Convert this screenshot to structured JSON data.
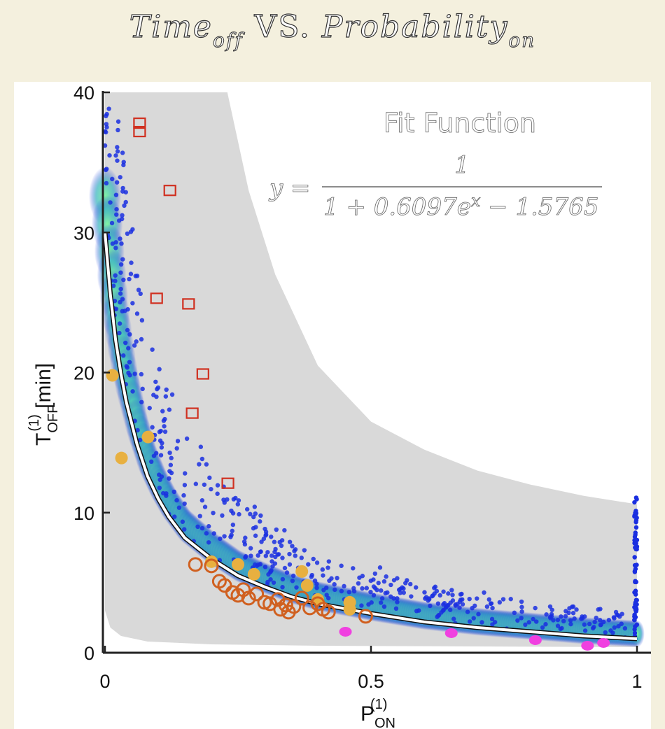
{
  "page": {
    "title_main": "Time",
    "title_main_sub": "off",
    "title_mid": " VS. ",
    "title_prob": "Probability",
    "title_prob_sub": "on"
  },
  "chart_data": {
    "type": "scatter",
    "title": "Time_off VS. Probability_on",
    "xlabel": "P_ON^(1)",
    "xlabel_main": "P",
    "xlabel_sub": "ON",
    "xlabel_sup": "(1)",
    "ylabel": "T_OFF^(1) [min]",
    "ylabel_main": "T",
    "ylabel_sub": "OFF",
    "ylabel_sup": "(1)",
    "ylabel_unit": " [min]",
    "xlim": [
      0,
      1
    ],
    "ylim": [
      0,
      40
    ],
    "xticks": [
      0,
      0.5,
      1
    ],
    "xtick_labels": [
      "0",
      "0.5",
      "1"
    ],
    "yticks": [
      0,
      10,
      20,
      30,
      40
    ],
    "ytick_labels": [
      "0",
      "10",
      "20",
      "30",
      "40"
    ],
    "grid": false,
    "annotation": {
      "heading": "Fit Function",
      "y_label": "y =",
      "numerator": "1",
      "denominator": "1 + 0.6097e",
      "exponent": "x",
      "denominator_tail": " − 1.5765"
    },
    "colors": {
      "band": "#d9d9d9",
      "density_low": "#1a2fe0",
      "density_high": "#7cf5a0",
      "fit_line": "#ffffff",
      "red_square": "#d03020",
      "orange_circle": "#d06020",
      "yellow_dot": "#e8b040",
      "magenta_dot": "#f040e0"
    },
    "series": [
      {
        "type": "band",
        "lower": [
          [
            0.0,
            3.0
          ],
          [
            0.01,
            1.8
          ],
          [
            0.03,
            1.2
          ],
          [
            0.08,
            0.8
          ],
          [
            0.2,
            0.6
          ],
          [
            0.4,
            0.5
          ],
          [
            0.7,
            0.45
          ],
          [
            1.0,
            0.4
          ]
        ],
        "upper": [
          [
            0.23,
            40.0
          ],
          [
            0.27,
            33.0
          ],
          [
            0.32,
            27.0
          ],
          [
            0.4,
            20.5
          ],
          [
            0.5,
            16.5
          ],
          [
            0.6,
            14.5
          ],
          [
            0.7,
            13.0
          ],
          [
            0.8,
            12.0
          ],
          [
            0.9,
            11.2
          ],
          [
            1.0,
            10.6
          ]
        ]
      },
      {
        "type": "line",
        "points": [
          [
            0.0,
            30.0
          ],
          [
            0.005,
            27.8
          ],
          [
            0.01,
            25.6
          ],
          [
            0.02,
            22.3
          ],
          [
            0.03,
            19.9
          ],
          [
            0.04,
            17.9
          ],
          [
            0.05,
            16.4
          ],
          [
            0.06,
            14.9
          ],
          [
            0.08,
            12.6
          ],
          [
            0.1,
            11.0
          ],
          [
            0.12,
            9.7
          ],
          [
            0.15,
            8.2
          ],
          [
            0.2,
            6.7
          ],
          [
            0.25,
            5.5
          ],
          [
            0.3,
            4.7
          ],
          [
            0.35,
            4.0
          ],
          [
            0.4,
            3.5
          ],
          [
            0.5,
            2.8
          ],
          [
            0.6,
            2.2
          ],
          [
            0.7,
            1.8
          ],
          [
            0.8,
            1.5
          ],
          [
            0.9,
            1.2
          ],
          [
            1.0,
            1.0
          ]
        ]
      },
      {
        "type": "red_squares",
        "points": [
          [
            0.065,
            37.8
          ],
          [
            0.065,
            37.2
          ],
          [
            0.122,
            33.0
          ],
          [
            0.097,
            25.3
          ],
          [
            0.157,
            24.9
          ],
          [
            0.184,
            19.9
          ],
          [
            0.164,
            17.1
          ],
          [
            0.231,
            12.1
          ]
        ]
      },
      {
        "type": "orange_circles",
        "points": [
          [
            0.17,
            6.3
          ],
          [
            0.2,
            6.2
          ],
          [
            0.215,
            5.1
          ],
          [
            0.225,
            4.8
          ],
          [
            0.24,
            4.3
          ],
          [
            0.25,
            4.1
          ],
          [
            0.27,
            3.9
          ],
          [
            0.285,
            4.2
          ],
          [
            0.3,
            3.6
          ],
          [
            0.31,
            3.5
          ],
          [
            0.325,
            3.8
          ],
          [
            0.34,
            3.4
          ],
          [
            0.355,
            3.3
          ],
          [
            0.37,
            3.9
          ],
          [
            0.385,
            3.2
          ],
          [
            0.4,
            3.5
          ],
          [
            0.41,
            3.1
          ],
          [
            0.42,
            2.9
          ],
          [
            0.49,
            2.6
          ],
          [
            0.33,
            3.1
          ],
          [
            0.345,
            2.9
          ],
          [
            0.26,
            4.5
          ]
        ]
      },
      {
        "type": "yellow_dots",
        "points": [
          [
            0.014,
            19.8
          ],
          [
            0.031,
            13.9
          ],
          [
            0.081,
            15.4
          ],
          [
            0.2,
            6.5
          ],
          [
            0.25,
            6.3
          ],
          [
            0.28,
            5.6
          ],
          [
            0.37,
            5.8
          ],
          [
            0.38,
            4.8
          ],
          [
            0.4,
            3.8
          ],
          [
            0.46,
            3.6
          ],
          [
            0.46,
            3.1
          ]
        ]
      },
      {
        "type": "magenta_dots",
        "points": [
          [
            0.452,
            1.5
          ],
          [
            0.651,
            1.4
          ],
          [
            0.809,
            0.9
          ],
          [
            0.907,
            0.5
          ],
          [
            0.937,
            0.7
          ]
        ]
      }
    ]
  }
}
